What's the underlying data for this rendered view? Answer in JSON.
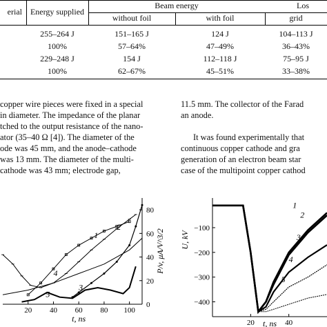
{
  "table": {
    "headers": {
      "col1": "erial",
      "col2": "Energy supplied",
      "beam": "Beam energy",
      "loss": "Los",
      "without_foil": "without foil",
      "with_foil": "with foil",
      "grid": "grid"
    },
    "rows": [
      [
        "255–264 J",
        "151–165 J",
        "124 J",
        "104–113 J"
      ],
      [
        "100%",
        "57–64%",
        "47–49%",
        "36–43%"
      ],
      [
        "229–248 J",
        "154 J",
        "112–118 J",
        "75–95 J"
      ],
      [
        "100%",
        "62–67%",
        "45–51%",
        "33–38%"
      ]
    ]
  },
  "left_column": [
    "copper wire pieces were fixed in a special",
    "in diameter. The impedance of the planar",
    "tched to the output resistance of the nano-",
    "ator (35–40 Ω [4]). The diameter of the",
    "ode was 45 mm, and the anode–cathode",
    "was 13 mm. The diameter of the multi-",
    "cathode was 43 mm; electrode gap,"
  ],
  "right_column": [
    "11.5 mm. The collector of the Farad",
    "an anode.",
    "It was found experimentally that",
    "continuous copper cathode and gra",
    "generation of an electron beam star",
    "case of the multipoint copper cathod"
  ],
  "chart_data": [
    {
      "type": "line",
      "xlabel": "t, ns",
      "ylabel": "P/v, μA/V^3/2",
      "x_ticks": [
        "20",
        "40",
        "60",
        "80",
        "100"
      ],
      "y_ticks_right": [
        "0",
        "20",
        "40",
        "60",
        "80"
      ],
      "xlim": [
        0,
        110
      ],
      "ylim": [
        0,
        90
      ],
      "curve_labels": [
        "1",
        "2",
        "3",
        "4",
        "5"
      ],
      "series": [
        {
          "x": [
            0,
            8,
            15,
            22,
            30,
            40,
            50,
            60,
            70,
            80,
            90,
            100,
            105
          ],
          "y": [
            42,
            34,
            24,
            16,
            14,
            18,
            26,
            36,
            46,
            55,
            64,
            72,
            76
          ]
        },
        {
          "x": [
            20,
            30,
            40,
            50,
            60,
            70,
            80,
            90,
            100
          ],
          "y": [
            8,
            18,
            30,
            42,
            50,
            56,
            62,
            66,
            70
          ]
        },
        {
          "x": [
            55,
            60,
            70,
            80,
            90,
            100,
            105,
            110
          ],
          "y": [
            6,
            10,
            18,
            26,
            36,
            50,
            66,
            84
          ]
        },
        {
          "x": [
            0,
            20,
            40,
            60,
            80,
            100,
            110
          ],
          "y": [
            8,
            12,
            18,
            26,
            34,
            46,
            56
          ]
        },
        {
          "x": [
            15,
            25,
            35,
            45,
            55,
            65,
            75,
            85,
            95,
            100,
            105
          ],
          "y": [
            2,
            4,
            10,
            6,
            5,
            12,
            14,
            12,
            9,
            14,
            32
          ]
        }
      ]
    },
    {
      "type": "line",
      "xlabel": "t, ns",
      "ylabel": "U, kV",
      "x_ticks": [
        "20",
        "40"
      ],
      "y_ticks": [
        "−100",
        "−200",
        "−300",
        "−400"
      ],
      "xlim": [
        0,
        60
      ],
      "ylim": [
        -460,
        20
      ],
      "curve_labels": [
        "1",
        "2",
        "3",
        "4",
        "5"
      ],
      "series": [
        {
          "x": [
            0,
            10,
            16,
            20,
            24,
            28,
            32,
            40,
            50,
            60
          ],
          "y": [
            -10,
            -10,
            -10,
            -200,
            -440,
            -400,
            -320,
            -200,
            -110,
            -40
          ]
        },
        {
          "x": [
            0,
            10,
            16,
            20,
            24,
            28,
            32,
            40,
            50,
            60
          ],
          "y": [
            -10,
            -10,
            -10,
            -200,
            -440,
            -400,
            -330,
            -210,
            -120,
            -50
          ]
        },
        {
          "x": [
            0,
            10,
            16,
            20,
            24,
            28,
            32,
            40,
            50,
            60
          ],
          "y": [
            -10,
            -10,
            -10,
            -200,
            -440,
            -420,
            -360,
            -280,
            -220,
            -170
          ]
        },
        {
          "x": [
            0,
            10,
            16,
            20,
            24,
            28,
            32,
            40,
            50,
            60
          ],
          "y": [
            -10,
            -10,
            -10,
            -200,
            -440,
            -430,
            -400,
            -340,
            -300,
            -250
          ]
        },
        {
          "x": [
            0,
            10,
            16,
            20,
            24,
            28,
            32,
            40,
            50,
            60
          ],
          "y": [
            -10,
            -10,
            -10,
            -200,
            -440,
            -440,
            -430,
            -410,
            -385,
            -370
          ]
        }
      ]
    }
  ]
}
